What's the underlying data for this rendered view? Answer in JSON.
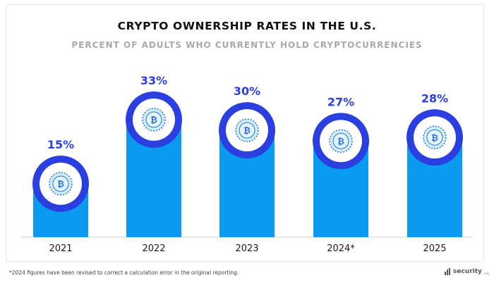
{
  "header": {
    "title": "CRYPTO OWNERSHIP RATES IN THE U.S.",
    "subtitle": "PERCENT OF ADULTS WHO CURRENTLY HOLD CRYPTOCURRENCIES"
  },
  "chart_data": {
    "type": "bar",
    "title": "CRYPTO OWNERSHIP RATES IN THE U.S.",
    "subtitle": "PERCENT OF ADULTS WHO CURRENTLY HOLD CRYPTOCURRENCIES",
    "categories": [
      "2021",
      "2022",
      "2023",
      "2024*",
      "2025"
    ],
    "values": [
      15,
      33,
      30,
      27,
      28
    ],
    "value_labels": [
      "15%",
      "33%",
      "30%",
      "27%",
      "28%"
    ],
    "ylim": [
      0,
      40
    ],
    "grid": false,
    "legend": "none",
    "colors": {
      "bar": "#0a9bf0",
      "ring": "#2b3ee0",
      "label": "#2b3ee0",
      "coin_fill": "#cdeffc",
      "coin_symbol": "#2f6ed6"
    }
  },
  "footer": {
    "footnote": "*2024 figures have been revised to correct a calculation error in the original reporting.",
    "brand": "security",
    "brand_suffix": ".org"
  },
  "icons": {
    "coin": "bitcoin-coin-icon",
    "brand": "security-org-logo-icon"
  }
}
